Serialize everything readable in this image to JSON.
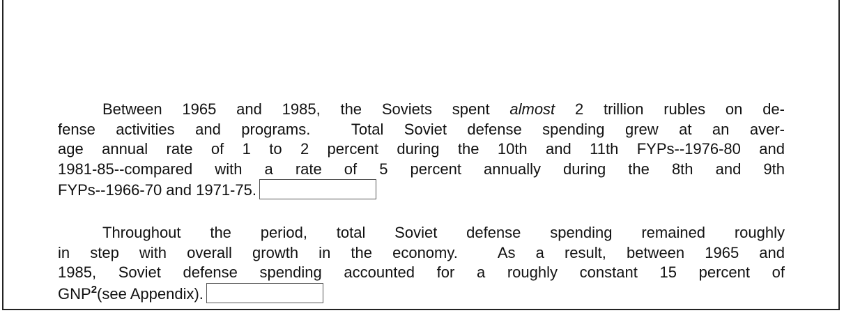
{
  "document": {
    "paragraphs": [
      {
        "lines": [
          [
            "Between 1965 and 1985, the Soviets spent ",
            "almost",
            " 2 trillion rubles on de-"
          ],
          [
            "fense activities and programs.  Total Soviet defense spending grew at an aver-"
          ],
          [
            "age annual rate of 1 to 2 percent during the 10th and 11th FYPs--1976-80 and"
          ],
          [
            "1981-85--compared with a rate of 5 percent annually during the 8th and 9th"
          ],
          [
            "FYPs--1966-70 and 1971-75."
          ]
        ]
      },
      {
        "lines": [
          [
            "Throughout the period, total Soviet defense spending remained roughly"
          ],
          [
            "in step with overall growth in the economy.  As a result, between 1965 and"
          ],
          [
            "1985, Soviet defense spending accounted for a roughly constant 15 percent of"
          ],
          [
            "GNP",
            "2",
            "(see Appendix)."
          ]
        ]
      }
    ]
  }
}
